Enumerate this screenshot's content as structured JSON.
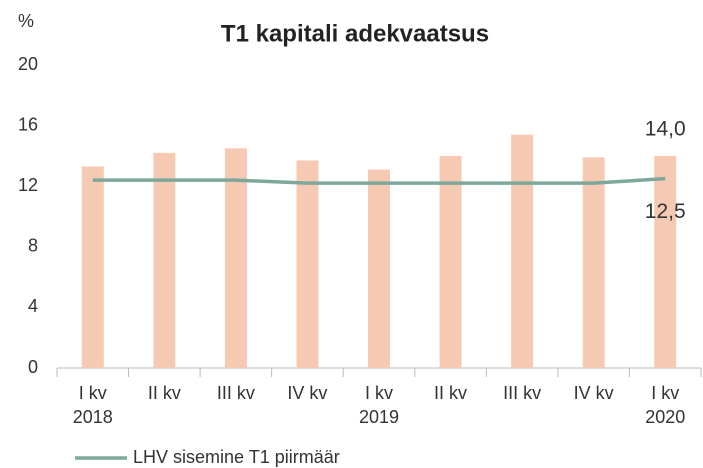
{
  "chart_data": {
    "type": "bar_line",
    "title": "T1 kapitali adekvaatsus",
    "y_label": "%",
    "categories": [
      "I kv",
      "II kv",
      "III kv",
      "IV kv",
      "I kv",
      "II kv",
      "III kv",
      "IV kv",
      "I kv"
    ],
    "category_years": [
      "2018",
      null,
      null,
      null,
      "2019",
      null,
      null,
      null,
      "2020"
    ],
    "series": [
      {
        "type": "bar",
        "color": "#f6cab2",
        "values": [
          13.3,
          14.2,
          14.5,
          13.7,
          13.1,
          14.0,
          15.4,
          13.9,
          14.0
        ],
        "value_labels": [
          null,
          null,
          null,
          null,
          null,
          null,
          null,
          null,
          "14,0"
        ]
      },
      {
        "type": "line",
        "name": "LHV sisemine T1 piirmäär",
        "color": "#7da89b",
        "values": [
          12.4,
          12.4,
          12.4,
          12.2,
          12.2,
          12.2,
          12.2,
          12.2,
          12.5
        ],
        "value_labels": [
          null,
          null,
          null,
          null,
          null,
          null,
          null,
          null,
          "12,5"
        ]
      }
    ],
    "ylim": [
      0,
      20
    ],
    "yticks": [
      0,
      4,
      8,
      12,
      16,
      20
    ],
    "grid": false,
    "legend": "bottom-left"
  }
}
